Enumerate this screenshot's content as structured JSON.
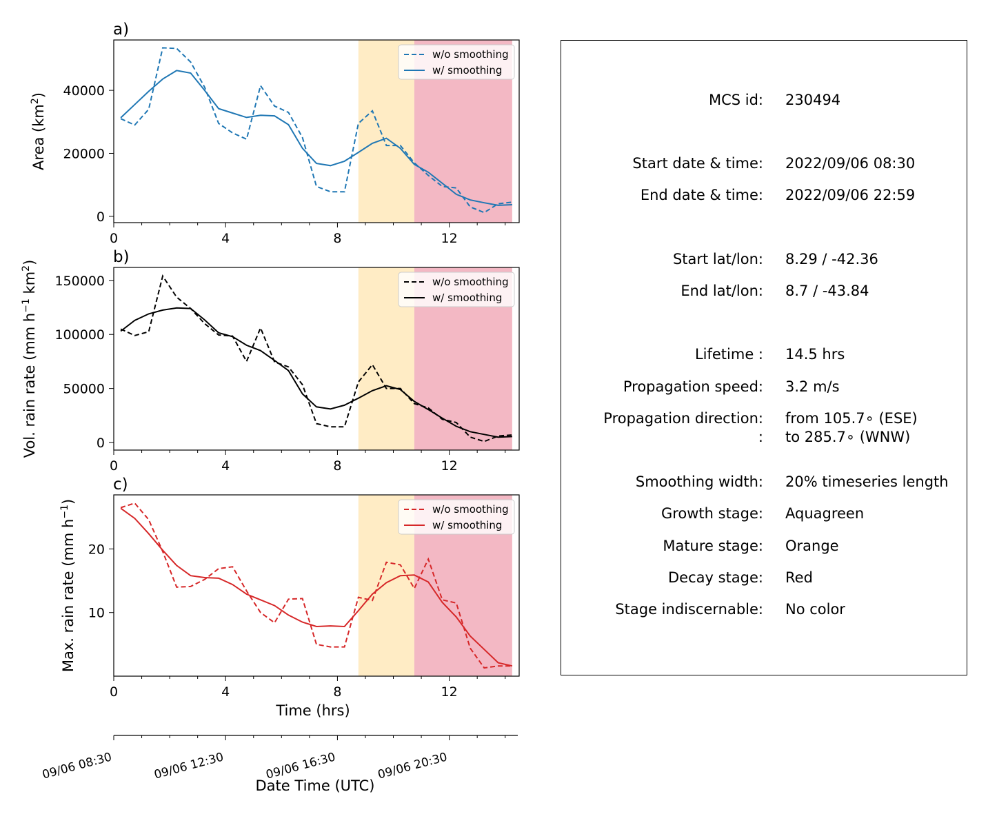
{
  "chart_data": [
    {
      "type": "line",
      "panel_label": "a)",
      "xlabel": "",
      "ylabel": "Area  (km²)",
      "ylabel_parts": [
        "Area  (km",
        "2",
        ")"
      ],
      "xlim": [
        0,
        14.5
      ],
      "ylim": [
        -2000,
        56000
      ],
      "xticks": [
        0,
        4,
        8,
        12
      ],
      "yticks": [
        0,
        20000,
        40000
      ],
      "ytick_labels": [
        "0",
        "20000",
        "40000"
      ],
      "color": "#1f77b4",
      "legend": [
        "w/o smoothing",
        "w/ smoothing"
      ],
      "legend_position": "upper right",
      "series": [
        {
          "name": "w/o smoothing",
          "style": "dashed",
          "x": [
            0.25,
            0.75,
            1.25,
            1.75,
            2.25,
            2.75,
            3.25,
            3.75,
            4.25,
            4.75,
            5.25,
            5.75,
            6.25,
            6.75,
            7.25,
            7.75,
            8.25,
            8.75,
            9.25,
            9.75,
            10.25,
            10.75,
            11.25,
            11.75,
            12.25,
            12.75,
            13.25,
            13.75,
            14.25
          ],
          "values": [
            31000,
            29000,
            34000,
            53500,
            53300,
            49000,
            41000,
            29500,
            26500,
            24500,
            41500,
            35000,
            33000,
            25000,
            9500,
            7800,
            7800,
            29500,
            33500,
            22500,
            22500,
            17000,
            13000,
            9500,
            9000,
            3000,
            1200,
            4000,
            4500
          ]
        },
        {
          "name": "w/ smoothing",
          "style": "solid",
          "x": [
            0.25,
            0.75,
            1.25,
            1.75,
            2.25,
            2.75,
            3.25,
            3.75,
            4.25,
            4.75,
            5.25,
            5.75,
            6.25,
            6.75,
            7.25,
            7.75,
            8.25,
            8.75,
            9.25,
            9.75,
            10.25,
            10.75,
            11.25,
            11.75,
            12.25,
            12.75,
            13.25,
            13.75,
            14.25
          ],
          "values": [
            31300,
            35500,
            39700,
            43600,
            46300,
            45500,
            40000,
            34200,
            32800,
            31400,
            32100,
            31900,
            29100,
            21600,
            16800,
            16100,
            17500,
            20300,
            23200,
            24800,
            21600,
            16500,
            14000,
            10500,
            7000,
            5200,
            4300,
            3500,
            3700
          ]
        }
      ]
    },
    {
      "type": "line",
      "panel_label": "b)",
      "xlabel": "",
      "ylabel": "Vol. rain rate (mm h⁻¹ km²)",
      "ylabel_parts": [
        "Vol. rain rate (mm h",
        "−1",
        " km",
        "2",
        ")"
      ],
      "xlim": [
        0,
        14.5
      ],
      "ylim": [
        -7000,
        162000
      ],
      "xticks": [
        0,
        4,
        8,
        12
      ],
      "yticks": [
        0,
        50000,
        100000,
        150000
      ],
      "ytick_labels": [
        "0",
        "50000",
        "100000",
        "150000"
      ],
      "color": "#000000",
      "legend": [
        "w/o smoothing",
        "w/ smoothing"
      ],
      "legend_position": "upper right",
      "series": [
        {
          "name": "w/o smoothing",
          "style": "dashed",
          "x": [
            0.25,
            0.75,
            1.25,
            1.75,
            2.25,
            2.75,
            3.25,
            3.75,
            4.25,
            4.75,
            5.25,
            5.75,
            6.25,
            6.75,
            7.25,
            7.75,
            8.25,
            8.75,
            9.25,
            9.75,
            10.25,
            10.75,
            11.25,
            11.75,
            12.25,
            12.75,
            13.25,
            13.75,
            14.25
          ],
          "values": [
            105000,
            99000,
            102500,
            154000,
            134500,
            124000,
            110000,
            99500,
            98500,
            75000,
            106000,
            74500,
            70000,
            53500,
            17500,
            14500,
            14500,
            56000,
            72000,
            50000,
            50000,
            36000,
            32000,
            21500,
            18500,
            5000,
            1000,
            6000,
            7000
          ]
        },
        {
          "name": "w/ smoothing",
          "style": "solid",
          "x": [
            0.25,
            0.75,
            1.25,
            1.75,
            2.25,
            2.75,
            3.25,
            3.75,
            4.25,
            4.75,
            5.25,
            5.75,
            6.25,
            6.75,
            7.25,
            7.75,
            8.25,
            8.75,
            9.25,
            9.75,
            10.25,
            10.75,
            11.25,
            11.75,
            12.25,
            12.75,
            13.25,
            13.75,
            14.25
          ],
          "values": [
            103000,
            113000,
            119000,
            122500,
            124500,
            124000,
            113500,
            101500,
            98000,
            90000,
            85000,
            76000,
            66500,
            45000,
            33000,
            31000,
            34500,
            41000,
            48000,
            52500,
            49000,
            38000,
            30500,
            22500,
            15000,
            10000,
            7500,
            5000,
            5500
          ]
        }
      ]
    },
    {
      "type": "line",
      "panel_label": "c)",
      "xlabel": "Time (hrs)",
      "ylabel": "Max. rain rate  (mm h⁻¹)",
      "ylabel_parts": [
        "Max. rain rate  (mm h",
        "−1",
        ")"
      ],
      "xlim": [
        0,
        14.5
      ],
      "ylim": [
        0,
        28.5
      ],
      "xticks": [
        0,
        4,
        8,
        12
      ],
      "yticks": [
        10,
        20
      ],
      "ytick_labels": [
        "10",
        "20"
      ],
      "color": "#d62728",
      "legend": [
        "w/o smoothing",
        "w/ smoothing"
      ],
      "legend_position": "upper right",
      "series": [
        {
          "name": "w/o smoothing",
          "style": "dashed",
          "x": [
            0.25,
            0.75,
            1.25,
            1.75,
            2.25,
            2.75,
            3.25,
            3.75,
            4.25,
            4.75,
            5.25,
            5.75,
            6.25,
            6.75,
            7.25,
            7.75,
            8.25,
            8.75,
            9.25,
            9.75,
            10.25,
            10.75,
            11.25,
            11.75,
            12.25,
            12.75,
            13.25,
            13.75,
            14.25
          ],
          "values": [
            26.5,
            27.2,
            24.6,
            19.6,
            14.0,
            14.1,
            15.2,
            16.9,
            17.2,
            13.4,
            10.0,
            8.4,
            12.1,
            12.2,
            5.0,
            4.6,
            4.6,
            12.4,
            11.9,
            17.9,
            17.5,
            13.8,
            18.4,
            12.0,
            11.5,
            4.4,
            1.3,
            1.6,
            1.6
          ]
        },
        {
          "name": "w/ smoothing",
          "style": "solid",
          "x": [
            0.25,
            0.75,
            1.25,
            1.75,
            2.25,
            2.75,
            3.25,
            3.75,
            4.25,
            4.75,
            5.25,
            5.75,
            6.25,
            6.75,
            7.25,
            7.75,
            8.25,
            8.75,
            9.25,
            9.75,
            10.25,
            10.75,
            11.25,
            11.75,
            12.25,
            12.75,
            13.25,
            13.75,
            14.25
          ],
          "values": [
            26.4,
            24.8,
            22.4,
            19.8,
            17.4,
            15.8,
            15.5,
            15.4,
            14.4,
            12.9,
            12.0,
            11.1,
            9.6,
            8.5,
            7.8,
            7.9,
            7.8,
            10.3,
            12.9,
            14.7,
            15.8,
            15.9,
            14.8,
            11.6,
            9.3,
            6.3,
            4.2,
            2.1,
            1.6
          ]
        }
      ]
    }
  ],
  "stage_shading": [
    {
      "stage": "Mature",
      "color": "#ffecc5",
      "x_start": 8.75,
      "x_end": 10.75
    },
    {
      "stage": "Decay",
      "color": "#f3b8c4",
      "x_start": 10.75,
      "x_end": 14.25
    }
  ],
  "secondary_axis": {
    "title": "Date Time (UTC)",
    "tick_labels": [
      "09/06 08:30",
      "09/06 12:30",
      "09/06 16:30",
      "09/06 20:30"
    ],
    "tick_hours": [
      0,
      4,
      8,
      12
    ]
  },
  "info_panel": {
    "rows": [
      {
        "label": "MCS id:",
        "value": "230494"
      },
      {
        "label": "Start date & time:",
        "value": "2022/09/06 08:30"
      },
      {
        "label": "End date & time:",
        "value": "2022/09/06 22:59"
      },
      {
        "label": "Start lat/lon:",
        "value": "8.29 / -42.36"
      },
      {
        "label": "End lat/lon:",
        "value": "8.7 / -43.84"
      },
      {
        "label": "Lifetime :",
        "value": "14.5 hrs"
      },
      {
        "label": "Propagation speed:",
        "value": "3.2 m/s"
      },
      {
        "label": "Propagation direction:",
        "value": "from 105.7∘ (ESE)"
      },
      {
        "label": ":",
        "value": "to   285.7∘ (WNW)"
      },
      {
        "label": "Smoothing width:",
        "value": "20% timeseries length"
      },
      {
        "label": "Growth stage:",
        "value": "Aquagreen"
      },
      {
        "label": "Mature stage:",
        "value": "Orange"
      },
      {
        "label": "Decay stage:",
        "value": "Red"
      },
      {
        "label": "Stage indiscernable:",
        "value": "No color"
      }
    ]
  }
}
